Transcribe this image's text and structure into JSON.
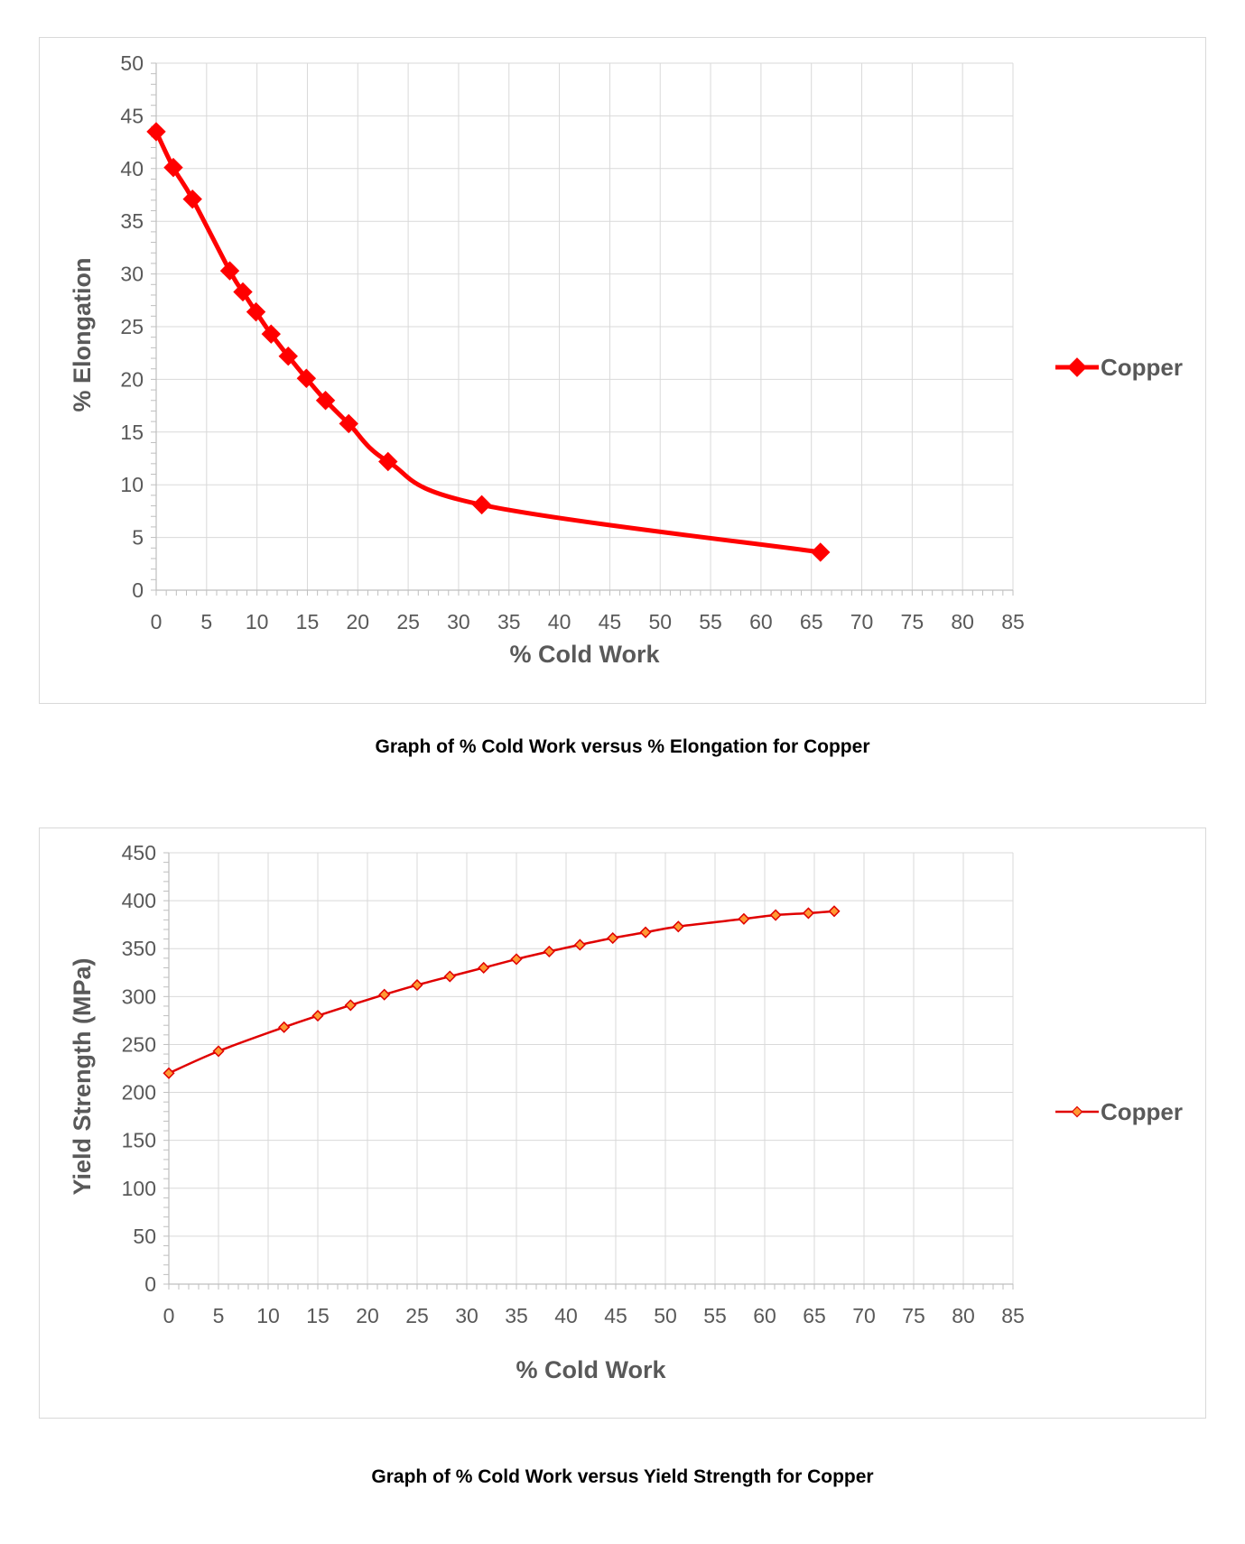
{
  "charts": [
    {
      "caption": "Graph of % Cold Work versus % Elongation for Copper"
    },
    {
      "caption": "Graph of % Cold Work versus Yield Strength for Copper"
    }
  ],
  "chart_data": [
    {
      "type": "line",
      "title": "",
      "xlabel": "% Cold Work",
      "ylabel": "% Elongation",
      "xlim": [
        0,
        85
      ],
      "ylim": [
        0,
        50
      ],
      "x_ticks": [
        0,
        5,
        10,
        15,
        20,
        25,
        30,
        35,
        40,
        45,
        50,
        55,
        60,
        65,
        70,
        75,
        80,
        85
      ],
      "y_ticks": [
        0,
        5,
        10,
        15,
        20,
        25,
        30,
        35,
        40,
        45,
        50
      ],
      "grid": true,
      "smooth": true,
      "legend_position": "right",
      "series": [
        {
          "name": "Copper",
          "color": "#ff0000",
          "marker": "diamond-large",
          "x": [
            0,
            1.7,
            3.6,
            7.3,
            8.6,
            9.9,
            11.4,
            13.1,
            14.9,
            16.8,
            19.1,
            23.0,
            32.3,
            65.9
          ],
          "y": [
            43.5,
            40.1,
            37.1,
            30.3,
            28.3,
            26.4,
            24.3,
            22.2,
            20.1,
            18.0,
            15.8,
            12.2,
            8.1,
            3.6
          ]
        }
      ]
    },
    {
      "type": "line",
      "title": "",
      "xlabel": "% Cold Work",
      "ylabel": "Yield Strength (MPa)",
      "xlim": [
        0,
        85
      ],
      "ylim": [
        0,
        450
      ],
      "x_ticks": [
        0,
        5,
        10,
        15,
        20,
        25,
        30,
        35,
        40,
        45,
        50,
        55,
        60,
        65,
        70,
        75,
        80,
        85
      ],
      "y_ticks": [
        0,
        50,
        100,
        150,
        200,
        250,
        300,
        350,
        400,
        450
      ],
      "grid": true,
      "smooth": true,
      "legend_position": "right",
      "series": [
        {
          "name": "Copper",
          "color": "#e00000",
          "marker_fill": "#ff9933",
          "marker": "diamond-small",
          "x": [
            0,
            5.0,
            11.6,
            15.0,
            18.3,
            21.7,
            25.0,
            28.3,
            31.7,
            35.0,
            38.3,
            41.4,
            44.7,
            48.0,
            51.3,
            57.9,
            61.1,
            64.4,
            67.0
          ],
          "y": [
            220,
            243,
            268,
            280,
            291,
            302,
            312,
            321,
            330,
            339,
            347,
            354,
            361,
            367,
            373,
            381,
            385,
            387,
            389
          ]
        }
      ]
    }
  ]
}
